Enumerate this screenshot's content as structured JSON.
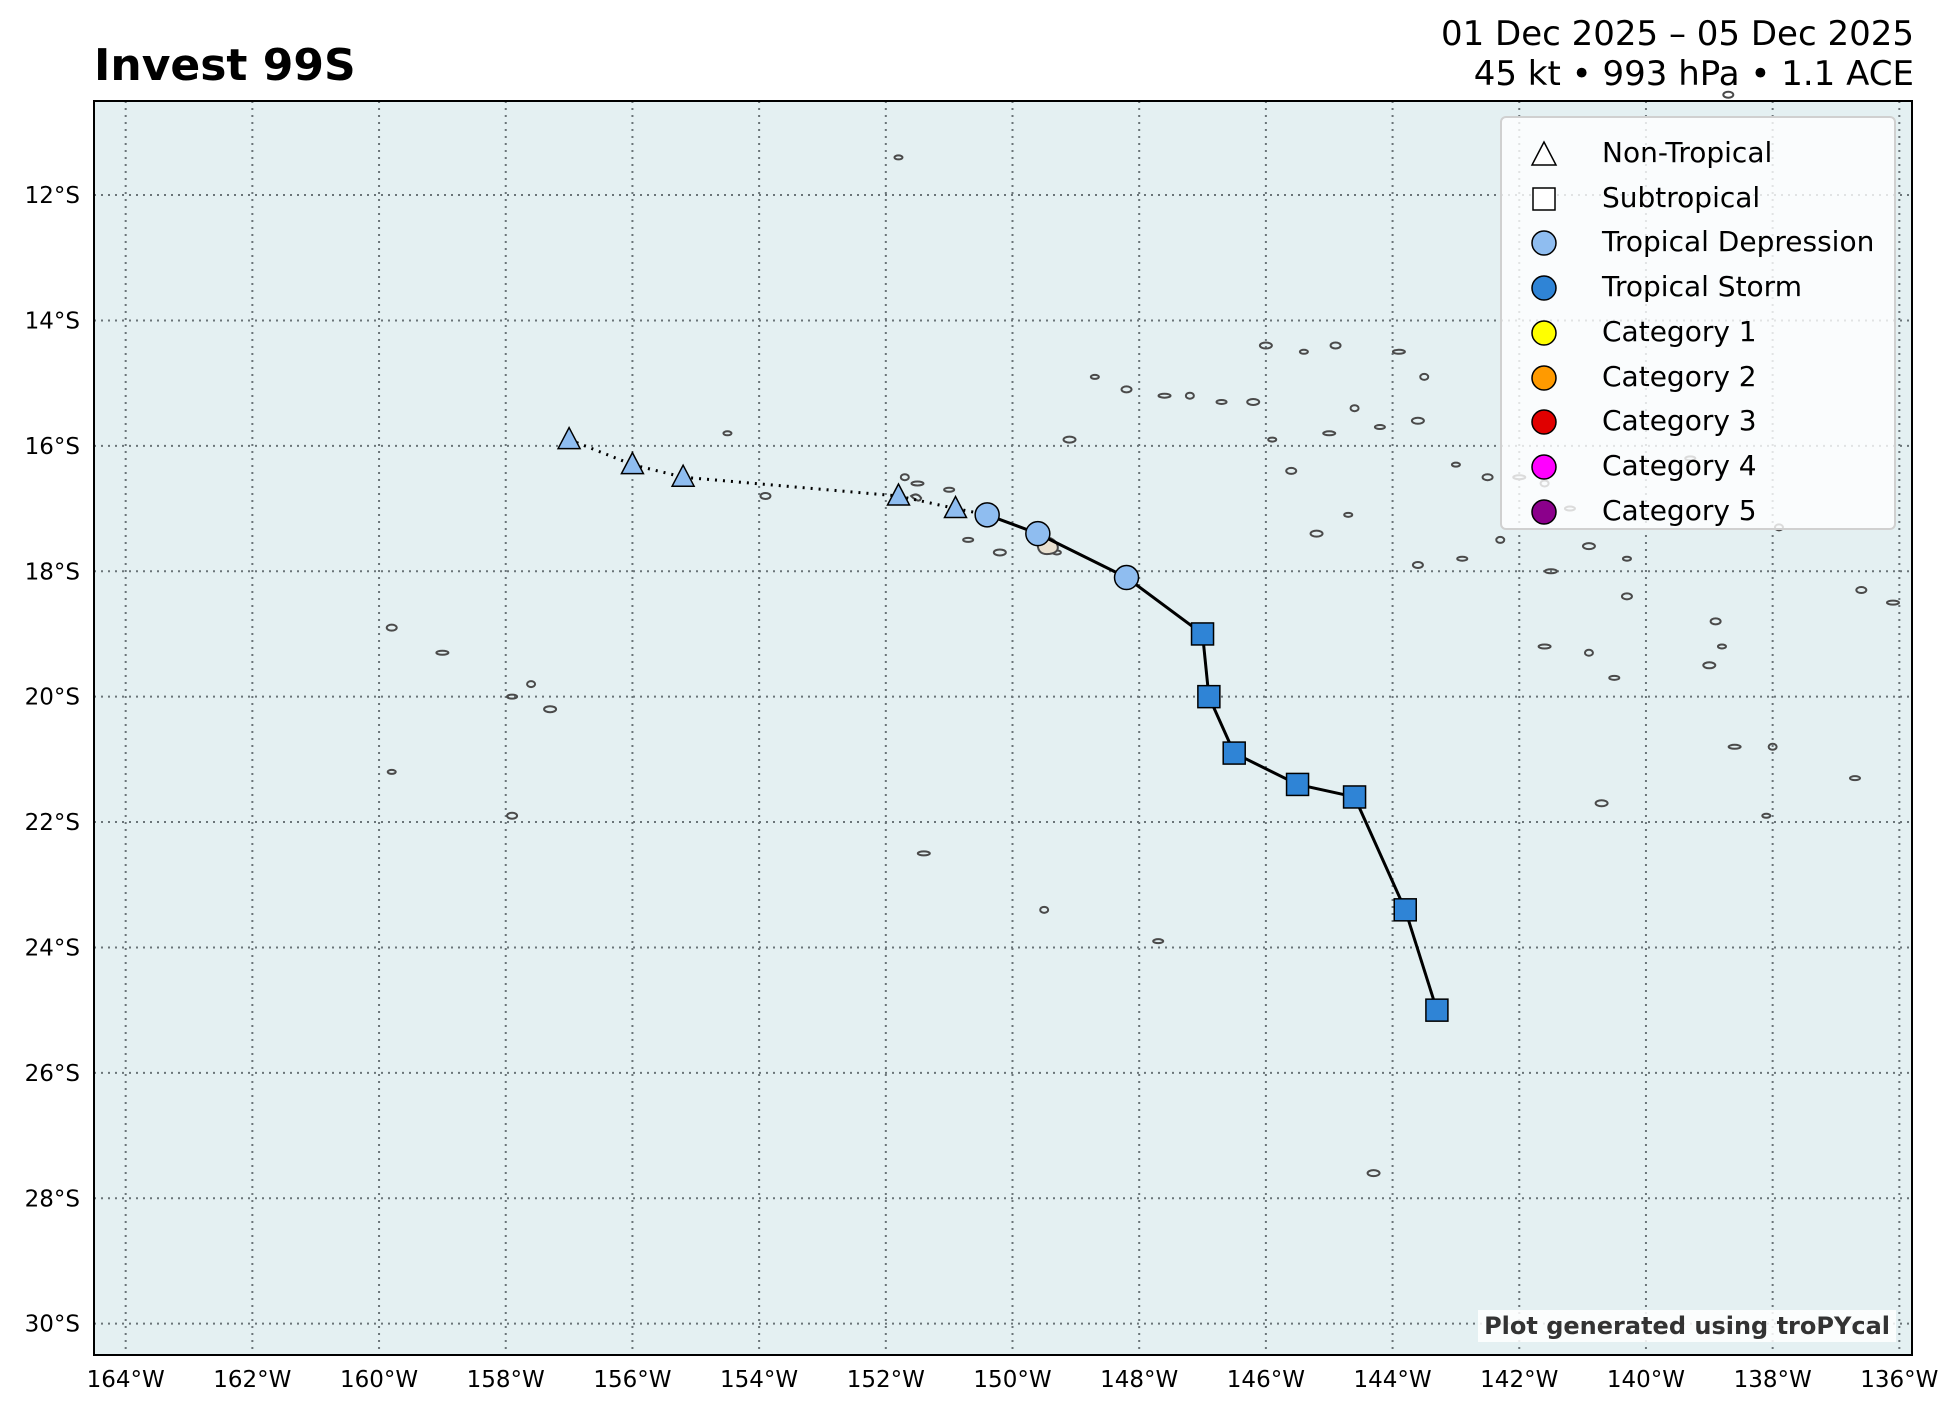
{
  "header": {
    "title": "Invest 99S",
    "date_range": "01 Dec 2025 – 05 Dec 2025",
    "stats": "45 kt • 993 hPa • 1.1 ACE"
  },
  "credit": "Plot generated using troPYcal",
  "map": {
    "lon_range": [
      -164.5,
      -135.8
    ],
    "lat_range": [
      -30.5,
      -10.5
    ],
    "lon_ticks": [
      {
        "value": -164,
        "label": "164°W"
      },
      {
        "value": -162,
        "label": "162°W"
      },
      {
        "value": -160,
        "label": "160°W"
      },
      {
        "value": -158,
        "label": "158°W"
      },
      {
        "value": -156,
        "label": "156°W"
      },
      {
        "value": -154,
        "label": "154°W"
      },
      {
        "value": -152,
        "label": "152°W"
      },
      {
        "value": -150,
        "label": "150°W"
      },
      {
        "value": -148,
        "label": "148°W"
      },
      {
        "value": -146,
        "label": "146°W"
      },
      {
        "value": -144,
        "label": "144°W"
      },
      {
        "value": -142,
        "label": "142°W"
      },
      {
        "value": -140,
        "label": "140°W"
      },
      {
        "value": -138,
        "label": "138°W"
      },
      {
        "value": -136,
        "label": "136°W"
      }
    ],
    "lat_ticks": [
      {
        "value": -12,
        "label": "12°S"
      },
      {
        "value": -14,
        "label": "14°S"
      },
      {
        "value": -16,
        "label": "16°S"
      },
      {
        "value": -18,
        "label": "18°S"
      },
      {
        "value": -20,
        "label": "20°S"
      },
      {
        "value": -22,
        "label": "22°S"
      },
      {
        "value": -24,
        "label": "24°S"
      },
      {
        "value": -26,
        "label": "26°S"
      },
      {
        "value": -28,
        "label": "28°S"
      },
      {
        "value": -30,
        "label": "30°S"
      }
    ],
    "gridlines": true,
    "ocean_color": "#e4f0f2",
    "island_color": "#4a4a4a"
  },
  "legend": {
    "placement": "top-right",
    "entries": [
      {
        "label": "Non-Tropical",
        "shape": "triangle",
        "color": "#ffffff"
      },
      {
        "label": "Subtropical",
        "shape": "square",
        "color": "#ffffff"
      },
      {
        "label": "Tropical Depression",
        "shape": "circle",
        "color": "#8fbdf0"
      },
      {
        "label": "Tropical Storm",
        "shape": "circle",
        "color": "#2f84d6"
      },
      {
        "label": "Category 1",
        "shape": "circle",
        "color": "#ffff00"
      },
      {
        "label": "Category 2",
        "shape": "circle",
        "color": "#ff9a00"
      },
      {
        "label": "Category 3",
        "shape": "circle",
        "color": "#e00000"
      },
      {
        "label": "Category 4",
        "shape": "circle",
        "color": "#ff00ff"
      },
      {
        "label": "Category 5",
        "shape": "circle",
        "color": "#8b008b"
      }
    ]
  },
  "track": [
    {
      "lon": -157.0,
      "lat": -15.9,
      "type": "non-tropical",
      "intensity": "Tropical Depression"
    },
    {
      "lon": -156.0,
      "lat": -16.3,
      "type": "non-tropical",
      "intensity": "Tropical Depression"
    },
    {
      "lon": -155.2,
      "lat": -16.5,
      "type": "non-tropical",
      "intensity": "Tropical Depression"
    },
    {
      "lon": -151.8,
      "lat": -16.8,
      "type": "non-tropical",
      "intensity": "Tropical Depression"
    },
    {
      "lon": -150.9,
      "lat": -17.0,
      "type": "non-tropical",
      "intensity": "Tropical Depression"
    },
    {
      "lon": -150.4,
      "lat": -17.1,
      "type": "tropical",
      "intensity": "Tropical Depression"
    },
    {
      "lon": -149.6,
      "lat": -17.4,
      "type": "tropical",
      "intensity": "Tropical Depression"
    },
    {
      "lon": -148.2,
      "lat": -18.1,
      "type": "tropical",
      "intensity": "Tropical Depression"
    },
    {
      "lon": -147.0,
      "lat": -19.0,
      "type": "subtropical",
      "intensity": "Tropical Storm"
    },
    {
      "lon": -146.9,
      "lat": -20.0,
      "type": "subtropical",
      "intensity": "Tropical Storm"
    },
    {
      "lon": -146.5,
      "lat": -20.9,
      "type": "subtropical",
      "intensity": "Tropical Storm"
    },
    {
      "lon": -145.5,
      "lat": -21.4,
      "type": "subtropical",
      "intensity": "Tropical Storm"
    },
    {
      "lon": -144.6,
      "lat": -21.6,
      "type": "subtropical",
      "intensity": "Tropical Storm"
    },
    {
      "lon": -143.8,
      "lat": -23.4,
      "type": "subtropical",
      "intensity": "Tropical Storm"
    },
    {
      "lon": -143.3,
      "lat": -25.0,
      "type": "subtropical",
      "intensity": "Tropical Storm"
    }
  ],
  "islands": [
    [
      -151.8,
      -11.4
    ],
    [
      -159.8,
      -18.9
    ],
    [
      -159.0,
      -19.3
    ],
    [
      -157.6,
      -19.8
    ],
    [
      -157.9,
      -20.0
    ],
    [
      -157.3,
      -20.2
    ],
    [
      -159.8,
      -21.2
    ],
    [
      -157.9,
      -21.9
    ],
    [
      -151.4,
      -22.5
    ],
    [
      -149.5,
      -23.4
    ],
    [
      -147.7,
      -23.9
    ],
    [
      -144.3,
      -27.6
    ],
    [
      -154.5,
      -15.8
    ],
    [
      -153.9,
      -16.8
    ],
    [
      -151.5,
      -16.6
    ],
    [
      -151.7,
      -16.5
    ],
    [
      -151.0,
      -16.7
    ],
    [
      -149.1,
      -15.9
    ],
    [
      -148.7,
      -14.9
    ],
    [
      -148.2,
      -15.1
    ],
    [
      -147.6,
      -15.2
    ],
    [
      -147.2,
      -15.2
    ],
    [
      -146.7,
      -15.3
    ],
    [
      -146.2,
      -15.3
    ],
    [
      -145.9,
      -15.9
    ],
    [
      -145.6,
      -16.4
    ],
    [
      -145.0,
      -15.8
    ],
    [
      -144.6,
      -15.4
    ],
    [
      -144.2,
      -15.7
    ],
    [
      -143.6,
      -15.6
    ],
    [
      -143.0,
      -16.3
    ],
    [
      -142.5,
      -16.5
    ],
    [
      -142.0,
      -16.5
    ],
    [
      -141.6,
      -16.6
    ],
    [
      -141.2,
      -17.0
    ],
    [
      -140.9,
      -17.6
    ],
    [
      -140.3,
      -17.8
    ],
    [
      -140.3,
      -18.4
    ],
    [
      -141.5,
      -18.0
    ],
    [
      -142.3,
      -17.5
    ],
    [
      -142.9,
      -17.8
    ],
    [
      -145.2,
      -17.4
    ],
    [
      -144.7,
      -17.1
    ],
    [
      -143.6,
      -17.9
    ],
    [
      -141.6,
      -19.2
    ],
    [
      -140.9,
      -19.3
    ],
    [
      -140.5,
      -19.7
    ],
    [
      -139.0,
      -19.5
    ],
    [
      -138.8,
      -19.2
    ],
    [
      -138.9,
      -18.8
    ],
    [
      -138.6,
      -20.8
    ],
    [
      -138.0,
      -20.8
    ],
    [
      -136.7,
      -21.3
    ],
    [
      -140.7,
      -21.7
    ],
    [
      -138.1,
      -21.9
    ],
    [
      -136.6,
      -18.3
    ],
    [
      -136.1,
      -18.5
    ],
    [
      -137.9,
      -17.3
    ],
    [
      -139.3,
      -16.2
    ],
    [
      -146.0,
      -14.4
    ],
    [
      -145.4,
      -14.5
    ],
    [
      -144.9,
      -14.4
    ],
    [
      -143.9,
      -14.5
    ],
    [
      -143.5,
      -14.9
    ],
    [
      -150.7,
      -17.5
    ],
    [
      -150.2,
      -17.7
    ],
    [
      -149.3,
      -17.7
    ],
    [
      -138.7,
      -10.4
    ]
  ]
}
